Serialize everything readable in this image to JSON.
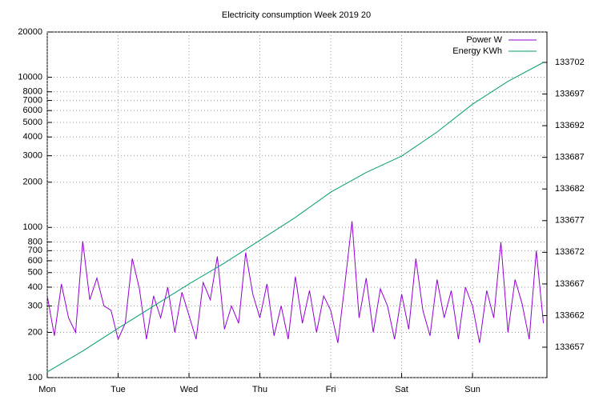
{
  "chart_data": {
    "type": "line",
    "title": "Electricity consumption Week 2019 20",
    "xlim": [
      0,
      7.05
    ],
    "xticks": [
      {
        "value": 0,
        "label": "Mon"
      },
      {
        "value": 1,
        "label": "Tue"
      },
      {
        "value": 2,
        "label": "Wed"
      },
      {
        "value": 3,
        "label": "Thu"
      },
      {
        "value": 4,
        "label": "Fri"
      },
      {
        "value": 5,
        "label": "Sat"
      },
      {
        "value": 6,
        "label": "Sun"
      }
    ],
    "ylim": [
      100,
      20000
    ],
    "y_log_scale": true,
    "yticks": [
      100,
      200,
      300,
      400,
      500,
      600,
      700,
      800,
      1000,
      2000,
      3000,
      4000,
      5000,
      6000,
      7000,
      8000,
      10000,
      20000
    ],
    "y2lim": [
      133652.2,
      133706.8
    ],
    "y2ticks": [
      133657,
      133662,
      133667,
      133672,
      133677,
      133682,
      133687,
      133692,
      133697,
      133702
    ],
    "grid": true,
    "legend_position": "top-right",
    "series": [
      {
        "name": "Power W",
        "color": "#9400d3",
        "x": [
          0,
          0.1,
          0.2,
          0.3,
          0.4,
          0.5,
          0.6,
          0.7,
          0.8,
          0.9,
          1,
          1.1,
          1.2,
          1.3,
          1.4,
          1.5,
          1.6,
          1.7,
          1.8,
          1.9,
          2,
          2.1,
          2.2,
          2.3,
          2.4,
          2.5,
          2.6,
          2.7,
          2.8,
          2.9,
          3,
          3.1,
          3.2,
          3.3,
          3.4,
          3.5,
          3.6,
          3.7,
          3.8,
          3.9,
          4,
          4.1,
          4.2,
          4.3,
          4.4,
          4.5,
          4.6,
          4.7,
          4.8,
          4.9,
          5,
          5.1,
          5.2,
          5.3,
          5.4,
          5.5,
          5.6,
          5.7,
          5.8,
          5.9,
          6,
          6.1,
          6.2,
          6.3,
          6.4,
          6.5,
          6.6,
          6.7,
          6.8,
          6.9,
          7
        ],
        "values": [
          350,
          190,
          420,
          250,
          200,
          810,
          330,
          460,
          300,
          280,
          180,
          230,
          620,
          390,
          180,
          350,
          250,
          400,
          200,
          370,
          260,
          180,
          430,
          330,
          640,
          210,
          300,
          230,
          680,
          360,
          250,
          420,
          190,
          300,
          180,
          470,
          230,
          380,
          200,
          350,
          280,
          170,
          420,
          1100,
          250,
          460,
          200,
          390,
          300,
          180,
          360,
          210,
          620,
          280,
          190,
          450,
          250,
          380,
          180,
          400,
          300,
          170,
          380,
          250,
          800,
          200,
          450,
          310,
          180,
          700,
          230
        ]
      },
      {
        "name": "Energy KWh",
        "color": "#009e73",
        "axis": "y2",
        "x": [
          0,
          0.5,
          1,
          1.5,
          2,
          2.5,
          3,
          3.5,
          4,
          4.5,
          5,
          5.5,
          6,
          6.5,
          7
        ],
        "values": [
          133653.1,
          133656.4,
          133660,
          133663.5,
          133667,
          133670.3,
          133673.9,
          133677.5,
          133681.5,
          133684.6,
          133687.2,
          133691,
          133695.4,
          133699,
          133702
        ]
      }
    ]
  }
}
